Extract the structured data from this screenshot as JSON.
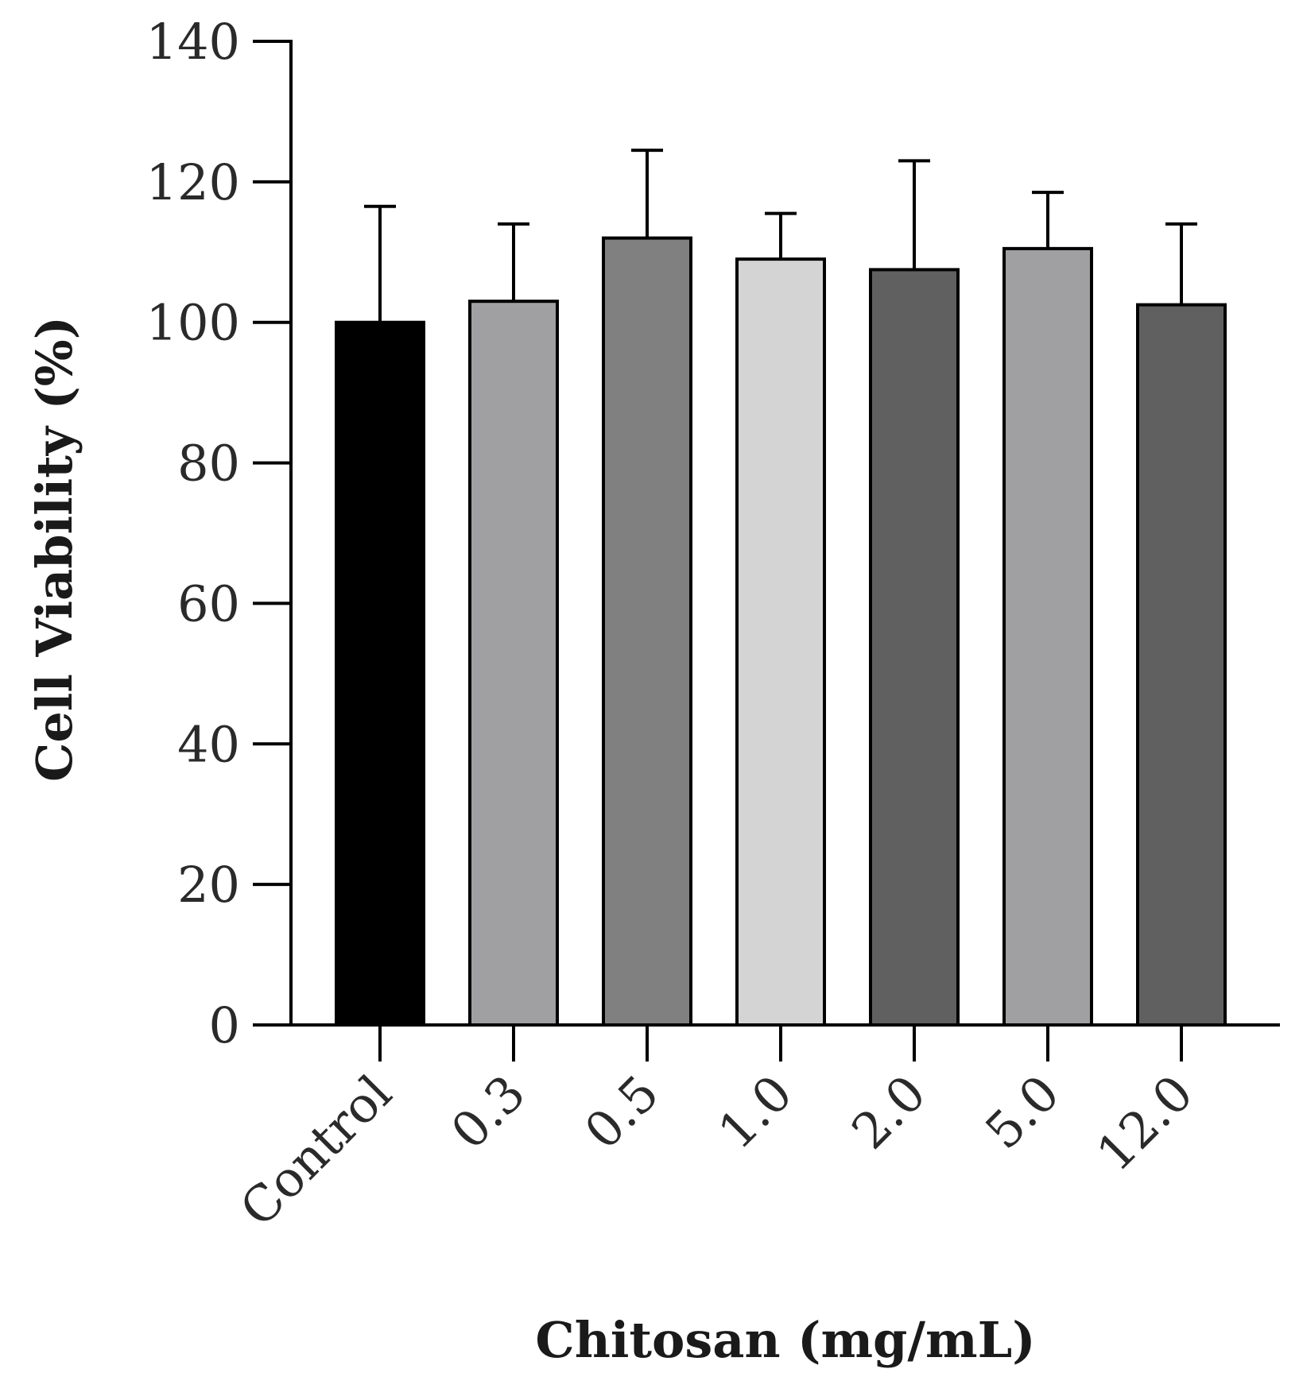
{
  "chart_data": {
    "type": "bar",
    "title": "",
    "xlabel": "Chitosan (mg/mL)",
    "ylabel": "Cell Viability (%)",
    "categories": [
      "Control",
      "0.3",
      "0.5",
      "1.0",
      "2.0",
      "5.0",
      "12.0"
    ],
    "values": [
      100,
      103,
      112,
      109,
      107.5,
      110.5,
      102.5
    ],
    "error_upper": [
      16.5,
      11,
      12.5,
      6.5,
      15.5,
      8,
      11.5
    ],
    "bar_colors": [
      "#000000",
      "#a0a0a2",
      "#808080",
      "#d4d4d4",
      "#606060",
      "#a0a0a2",
      "#606060"
    ],
    "ylim": [
      0,
      140
    ],
    "yticks": [
      0,
      20,
      40,
      60,
      80,
      100,
      120,
      140
    ],
    "ytick_labels": [
      "0",
      "20",
      "40",
      "60",
      "80",
      "100",
      "120",
      "140"
    ],
    "grid": false,
    "legend": "none"
  }
}
